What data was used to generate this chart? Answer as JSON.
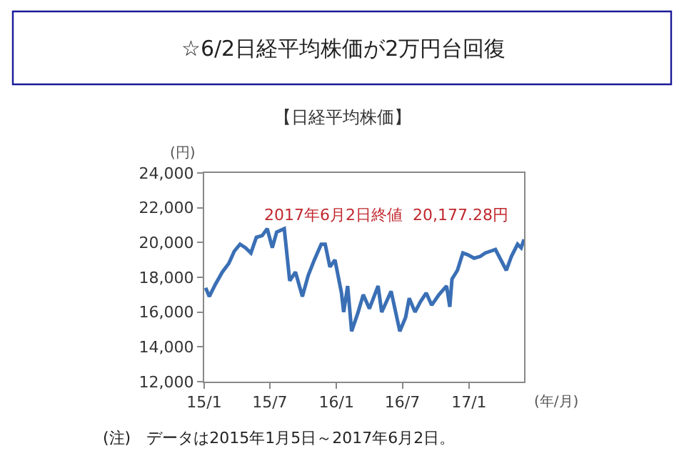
{
  "chart_data": {
    "type": "line",
    "title": "☆6/2日経平均株価が2万円台回復",
    "subtitle": "【日経平均株価】",
    "ylabel": "(円)",
    "xlabel": "(年/月)",
    "annotations": [
      "2017年6月2日終値  20,177.28円",
      "(注)　データは2015年1月5日～2017年6月2日。"
    ],
    "x": [
      "2015-01-05",
      "2015-01-15",
      "2015-02-01",
      "2015-02-20",
      "2015-03-10",
      "2015-03-25",
      "2015-04-10",
      "2015-04-25",
      "2015-05-10",
      "2015-05-25",
      "2015-06-10",
      "2015-06-24",
      "2015-07-08",
      "2015-07-20",
      "2015-08-10",
      "2015-08-25",
      "2015-09-10",
      "2015-09-29",
      "2015-10-15",
      "2015-11-01",
      "2015-11-20",
      "2015-12-01",
      "2015-12-14",
      "2015-12-28",
      "2016-01-15",
      "2016-01-21",
      "2016-02-01",
      "2016-02-12",
      "2016-03-01",
      "2016-03-15",
      "2016-04-01",
      "2016-04-25",
      "2016-05-05",
      "2016-05-31",
      "2016-06-24",
      "2016-07-10",
      "2016-07-20",
      "2016-08-05",
      "2016-08-20",
      "2016-09-05",
      "2016-09-20",
      "2016-10-10",
      "2016-10-31",
      "2016-11-09",
      "2016-11-15",
      "2016-11-30",
      "2016-12-15",
      "2016-12-28",
      "2017-01-15",
      "2017-02-01",
      "2017-02-15",
      "2017-03-01",
      "2017-03-15",
      "2017-04-14",
      "2017-04-28",
      "2017-05-15",
      "2017-05-25",
      "2017-06-02"
    ],
    "series": [
      {
        "color": "#3a6fb5",
        "values": [
          17400,
          16900,
          17600,
          18300,
          18800,
          19500,
          19900,
          19700,
          19400,
          20300,
          20400,
          20800,
          19700,
          20600,
          20800,
          17800,
          18300,
          16900,
          18100,
          19000,
          19900,
          19900,
          18600,
          19000,
          17100,
          16000,
          17500,
          14900,
          16000,
          17000,
          16200,
          17500,
          16000,
          17200,
          14900,
          15700,
          16800,
          16000,
          16600,
          17100,
          16400,
          17000,
          17500,
          16300,
          17900,
          18400,
          19400,
          19300,
          19100,
          19200,
          19400,
          19500,
          19600,
          18400,
          19200,
          19900,
          19700,
          20177.28
        ]
      }
    ],
    "xlim": [
      "2015-01-01",
      "2017-06-02"
    ],
    "xticks": [
      {
        "value": "2015-01-01",
        "label": "15/1"
      },
      {
        "value": "2015-07-01",
        "label": "15/7"
      },
      {
        "value": "2016-01-01",
        "label": "16/1"
      },
      {
        "value": "2016-07-01",
        "label": "16/7"
      },
      {
        "value": "2017-01-01",
        "label": "17/1"
      }
    ],
    "ylim": [
      12000,
      24000
    ],
    "yticks": [
      {
        "value": 12000,
        "label": "12,000"
      },
      {
        "value": 14000,
        "label": "14,000"
      },
      {
        "value": 16000,
        "label": "16,000"
      },
      {
        "value": 18000,
        "label": "18,000"
      },
      {
        "value": 20000,
        "label": "20,000"
      },
      {
        "value": 22000,
        "label": "22,000"
      },
      {
        "value": 24000,
        "label": "24,000"
      }
    ]
  }
}
